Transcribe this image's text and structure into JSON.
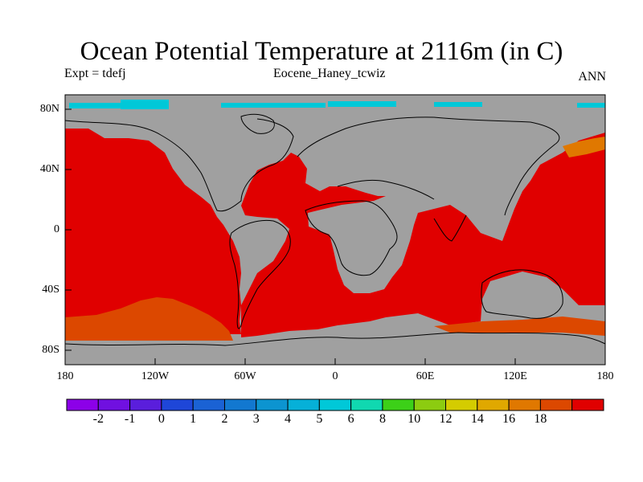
{
  "title": "Ocean Potential Temperature at 2116m (in C)",
  "subtitle_left": "Expt = tdefj",
  "subtitle_center": "Eocene_Haney_tcwiz",
  "subtitle_right": "ANN",
  "lat_ticks": [
    "80N",
    "40N",
    "0",
    "40S",
    "80S"
  ],
  "lon_ticks": [
    "180",
    "120W",
    "60W",
    "0",
    "60E",
    "120E",
    "180"
  ],
  "colorbar": {
    "labels": [
      "-2",
      "-1",
      "0",
      "1",
      "2",
      "3",
      "4",
      "5",
      "6",
      "8",
      "10",
      "12",
      "14",
      "16",
      "18"
    ],
    "colors": [
      "#8c00e8",
      "#7010e0",
      "#5a1edc",
      "#1e46d8",
      "#1a62d4",
      "#1278d0",
      "#0c94d0",
      "#06b0d8",
      "#00c8d8",
      "#10d8b0",
      "#3cd018",
      "#8ccc10",
      "#d4cc00",
      "#e0a800",
      "#e07800",
      "#dc4800",
      "#e00000"
    ]
  },
  "colors": {
    "land": "#a0a0a0",
    "ocean_warm": "#e00000",
    "ocean_cool": "#dc4800",
    "ocean_mid": "#e07800",
    "ice_cyan": "#00c8d8"
  }
}
